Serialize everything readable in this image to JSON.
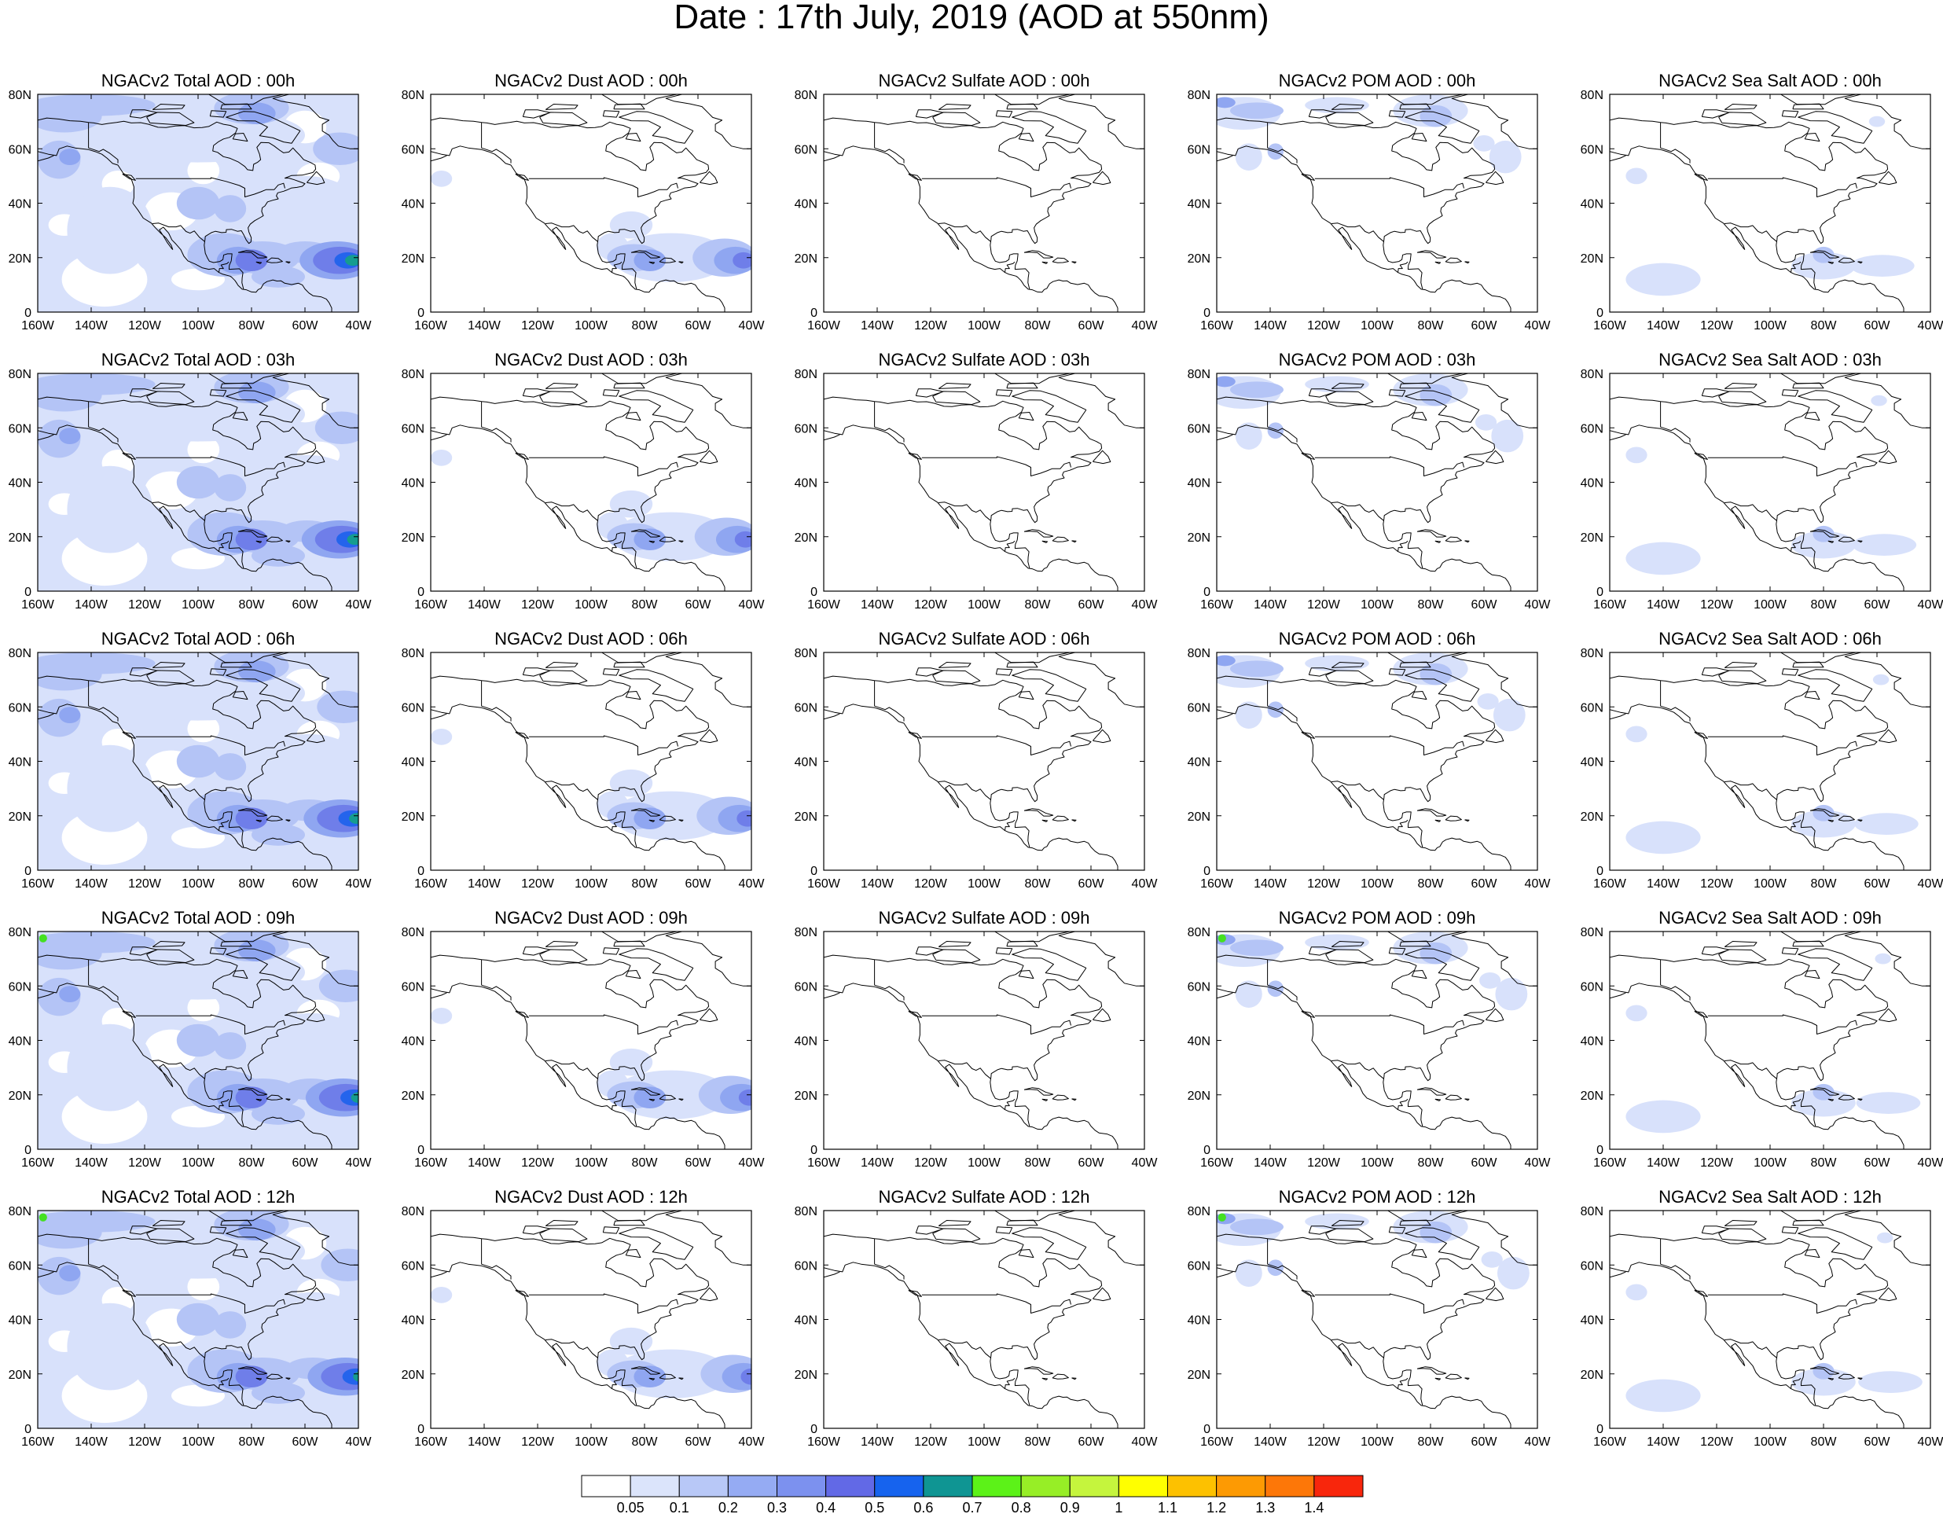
{
  "figure": {
    "title": "Date : 17th July, 2019 (AOD at 550nm)"
  },
  "rows": [
    "00h",
    "03h",
    "06h",
    "09h",
    "12h"
  ],
  "columns": [
    {
      "key": "total",
      "titles": [
        "NGACv2 Total AOD : 00h",
        "NGACv2 Total AOD : 03h",
        "NGACv2 Total AOD : 06h",
        "NGACv2 Total AOD : 09h",
        "NGACv2 Total AOD  : 12h"
      ]
    },
    {
      "key": "dust",
      "titles": [
        "NGACv2 Dust AOD : 00h",
        "NGACv2 Dust AOD : 03h",
        "NGACv2 Dust AOD : 06h",
        "NGACv2 Dust AOD : 09h",
        "NGACv2 Dust AOD : 12h"
      ]
    },
    {
      "key": "sulfate",
      "titles": [
        "NGACv2 Sulfate AOD : 00h",
        "NGACv2 Sulfate AOD : 03h",
        "NGACv2 Sulfate AOD : 06h",
        "NGACv2 Sulfate AOD : 09h",
        "NGACv2 Sulfate AOD : 12h"
      ]
    },
    {
      "key": "pom",
      "titles": [
        "NGACv2 POM AOD : 00h",
        "NGACv2 POM AOD : 03h",
        "NGACv2 POM AOD : 06h",
        "NGACv2 POM AOD : 09h",
        "NGACv2 POM  AOD : 12h"
      ]
    },
    {
      "key": "seasalt",
      "titles": [
        "NGACv2 Sea Salt AOD : 00h",
        "NGACv2 Sea Salt AOD : 03h",
        "NGACv2 Sea Salt AOD : 06h",
        "NGACv2 Sea Salt  AOD : 09h",
        "NGACv2 Sea Salt  AOD : 12h"
      ]
    }
  ],
  "axes": {
    "x_ticks": [
      "160W",
      "140W",
      "120W",
      "100W",
      "80W",
      "60W",
      "40W"
    ],
    "y_ticks": [
      "0",
      "20N",
      "40N",
      "60N",
      "80N"
    ],
    "lon_range": [
      -160,
      -40
    ],
    "lat_range": [
      0,
      80
    ]
  },
  "colorbar": {
    "labels": [
      "0.05",
      "0.1",
      "0.2",
      "0.3",
      "0.4",
      "0.5",
      "0.6",
      "0.7",
      "0.8",
      "0.9",
      "1",
      "1.1",
      "1.2",
      "1.3",
      "1.4"
    ],
    "colors": [
      "#ffffff",
      "#dbe4fb",
      "#b8c8f7",
      "#95abf3",
      "#7c91ef",
      "#6269e6",
      "#1663ee",
      "#0f9593",
      "#5cf218",
      "#97ee26",
      "#c5f53d",
      "#ffff00",
      "#fdc100",
      "#fd9a03",
      "#fd7708",
      "#f8260c"
    ]
  },
  "palette": {
    "level1": "#d8e1fb",
    "level2": "#b4c4f6",
    "level3": "#8fa6f1",
    "level4": "#6f7ee9",
    "level5": "#2464ec",
    "level6": "#169c8f",
    "level7": "#44e021",
    "coast": "#000000"
  }
}
